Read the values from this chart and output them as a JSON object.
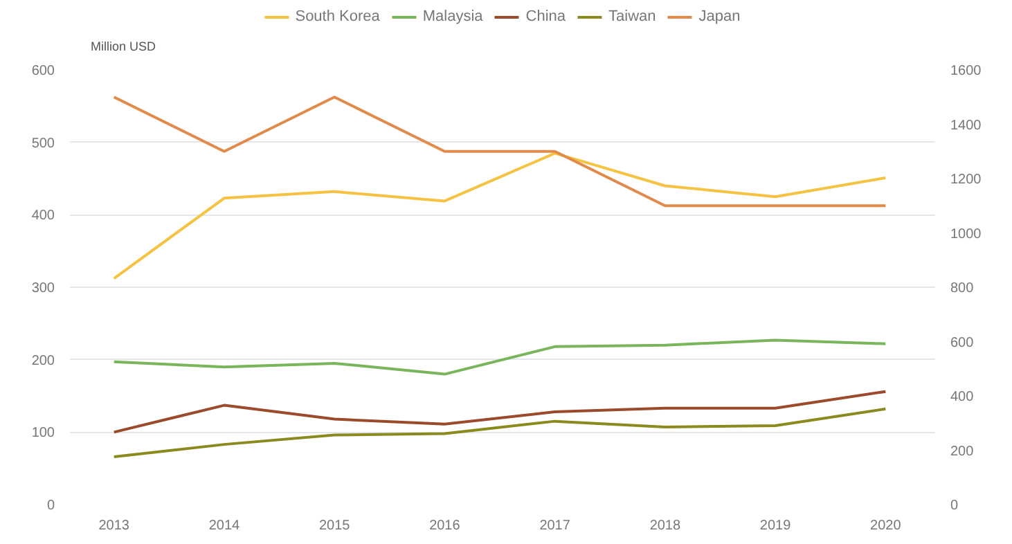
{
  "chart_data": {
    "type": "line",
    "ylabel": "Million USD",
    "x": [
      2013,
      2014,
      2015,
      2016,
      2017,
      2018,
      2019,
      2020
    ],
    "xlim": [
      2012.6,
      2020.45
    ],
    "xticks": [
      2013,
      2014,
      2015,
      2016,
      2017,
      2018,
      2019,
      2020
    ],
    "ylim": [
      0,
      600
    ],
    "yticks": [
      0,
      100,
      200,
      300,
      400,
      500,
      600
    ],
    "y2lim": [
      0,
      1600
    ],
    "y2ticks": [
      0,
      200,
      400,
      600,
      800,
      1000,
      1200,
      1400,
      1600
    ],
    "grid": "y",
    "legend": "top",
    "marker": "none",
    "line_style": "solid",
    "series": [
      {
        "name": "South Korea",
        "color": "#f5c242",
        "values": [
          312,
          423,
          432,
          419,
          485,
          440,
          425,
          451
        ]
      },
      {
        "name": "Malaysia",
        "color": "#79b55a",
        "values": [
          197,
          190,
          195,
          180,
          218,
          220,
          227,
          222
        ]
      },
      {
        "name": "China",
        "color": "#9b4a2c",
        "values": [
          100,
          137,
          118,
          111,
          128,
          133,
          133,
          156
        ]
      },
      {
        "name": "Taiwan",
        "color": "#8a8a1e",
        "values": [
          66,
          83,
          96,
          98,
          115,
          107,
          109,
          132
        ]
      },
      {
        "name": "Japan",
        "color": "#e28a4a",
        "axis": "y2",
        "values": [
          1500,
          1300,
          1500,
          1300,
          1300,
          1100,
          1100,
          1100
        ]
      }
    ]
  }
}
